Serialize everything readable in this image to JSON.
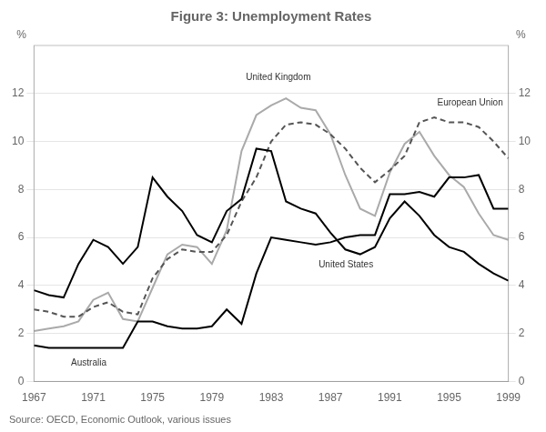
{
  "chart_data": {
    "type": "line",
    "title": "Figure 3: Unemployment Rates",
    "source": "Source: OECD, Economic Outlook, various issues",
    "ylabel": "%",
    "y2label": "%",
    "x": [
      1967,
      1968,
      1969,
      1970,
      1971,
      1972,
      1973,
      1974,
      1975,
      1976,
      1977,
      1978,
      1979,
      1980,
      1981,
      1982,
      1983,
      1984,
      1985,
      1986,
      1987,
      1988,
      1989,
      1990,
      1991,
      1992,
      1993,
      1994,
      1995,
      1996,
      1997,
      1998,
      1999
    ],
    "series": [
      {
        "name": "United Kingdom",
        "color": "#aaaaaa",
        "line_style": "solid",
        "values": [
          2.1,
          2.2,
          2.3,
          2.5,
          3.4,
          3.7,
          2.6,
          2.5,
          3.9,
          5.3,
          5.7,
          5.6,
          4.9,
          6.3,
          9.6,
          11.1,
          11.5,
          11.8,
          11.4,
          11.3,
          10.3,
          8.6,
          7.2,
          6.9,
          8.7,
          9.9,
          10.4,
          9.4,
          8.6,
          8.1,
          7.0,
          6.1,
          5.9
        ]
      },
      {
        "name": "European Union",
        "color": "#555555",
        "line_style": "dashed",
        "values": [
          3.0,
          2.9,
          2.7,
          2.7,
          3.1,
          3.3,
          2.9,
          2.8,
          4.3,
          5.1,
          5.5,
          5.4,
          5.4,
          6.1,
          7.5,
          8.5,
          10.0,
          10.7,
          10.8,
          10.7,
          10.3,
          9.7,
          8.9,
          8.3,
          8.8,
          9.4,
          10.8,
          11.0,
          10.8,
          10.8,
          10.6,
          10.0,
          9.3
        ]
      },
      {
        "name": "United States",
        "color": "#000000",
        "line_style": "solid",
        "values": [
          3.8,
          3.6,
          3.5,
          4.9,
          5.9,
          5.6,
          4.9,
          5.6,
          8.5,
          7.7,
          7.1,
          6.1,
          5.8,
          7.1,
          7.6,
          9.7,
          9.6,
          7.5,
          7.2,
          7.0,
          6.2,
          5.5,
          5.3,
          5.6,
          6.8,
          7.5,
          6.9,
          6.1,
          5.6,
          5.4,
          4.9,
          4.5,
          4.2
        ]
      },
      {
        "name": "Australia",
        "color": "#000000",
        "line_style": "solid",
        "values": [
          1.5,
          1.4,
          1.4,
          1.4,
          1.4,
          1.4,
          1.4,
          2.5,
          2.5,
          2.3,
          2.2,
          2.2,
          2.3,
          3.0,
          2.4,
          4.5,
          6.0,
          5.9,
          5.8,
          5.7,
          5.8,
          6.0,
          6.1,
          6.1,
          7.8,
          7.8,
          7.9,
          7.7,
          8.5,
          8.5,
          8.6,
          7.2,
          7.2
        ]
      }
    ],
    "xlim": [
      1967,
      1999
    ],
    "xticks": [
      1967,
      1971,
      1975,
      1979,
      1983,
      1987,
      1991,
      1995,
      1999
    ],
    "ylim": [
      0,
      14
    ],
    "yticks": [
      0,
      2,
      4,
      6,
      8,
      10,
      12
    ],
    "y2lim": [
      0,
      14
    ],
    "y2ticks": [
      0,
      2,
      4,
      6,
      8,
      10,
      12
    ],
    "grid": "y",
    "annotations": [
      {
        "text": "Australia",
        "x": 1969.5,
        "y": 0.65
      },
      {
        "text": "United Kingdom",
        "x": 1981.3,
        "y": 12.55
      },
      {
        "text": "European Union",
        "x": 1994.2,
        "y": 11.5
      },
      {
        "text": "United States",
        "x": 1986.2,
        "y": 4.75
      }
    ]
  }
}
